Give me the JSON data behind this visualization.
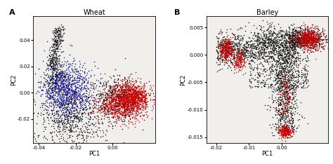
{
  "panel_A": {
    "title": "Wheat",
    "label": "A",
    "xlabel": "PC1",
    "ylabel": "PC2",
    "xlim": [
      -0.043,
      0.023
    ],
    "ylim": [
      -0.038,
      0.058
    ],
    "xticks": [
      -0.04,
      -0.02,
      0.0
    ],
    "yticks": [
      -0.02,
      0.0,
      0.02,
      0.04
    ],
    "seed": 42
  },
  "panel_B": {
    "title": "Barley",
    "label": "B",
    "xlabel": "PC1",
    "ylabel": "PC2",
    "xlim": [
      -0.023,
      0.014
    ],
    "ylim": [
      -0.016,
      0.007
    ],
    "xticks": [
      -0.02,
      -0.01,
      0.0
    ],
    "yticks": [
      -0.015,
      -0.01,
      -0.005,
      0.0,
      0.005
    ],
    "seed": 77
  },
  "colors": {
    "black": "#1a1a1a",
    "red": "#cc0000",
    "blue": "#1515cc"
  },
  "marker_size": 1.2,
  "background": "#ffffff",
  "panel_bg": "#f0efeb"
}
